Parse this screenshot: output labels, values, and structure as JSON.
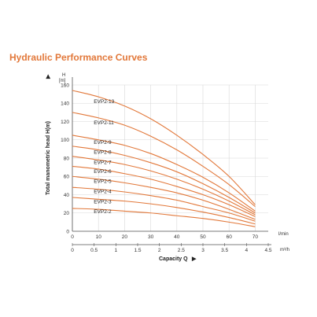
{
  "title": "Hydraulic Performance Curves",
  "colors": {
    "curve": "#e2783a",
    "grid": "#d8d8d8",
    "axis": "#555555",
    "title": "#e2783a"
  },
  "chart_data": {
    "type": "line",
    "title": "Hydraulic Performance Curves",
    "ylabel": "Total manometric head H(m)",
    "y_unit_top": "H",
    "y_unit": "[m]",
    "xlabel": "Capacity Q",
    "x_unit_1": "l/min",
    "x_unit_2": "m³/h",
    "xlim": [
      0,
      75
    ],
    "ylim": [
      0,
      160
    ],
    "x_ticks": [
      0,
      10,
      20,
      30,
      40,
      50,
      60,
      70
    ],
    "x2_ticks": [
      "0",
      "0.5",
      "1",
      "1.5",
      "2",
      "2.5",
      "3",
      "3.5",
      "4",
      "4.5"
    ],
    "y_ticks": [
      0,
      20,
      40,
      60,
      80,
      100,
      120,
      140,
      160
    ],
    "grid": true,
    "series": [
      {
        "name": "EVP2-13",
        "x": [
          0,
          10,
          20,
          30,
          40,
          50,
          60,
          70
        ],
        "values": [
          154,
          147,
          137,
          123,
          105,
          84,
          60,
          29
        ]
      },
      {
        "name": "EVP2-11",
        "x": [
          0,
          10,
          20,
          30,
          40,
          50,
          60,
          70
        ],
        "values": [
          130,
          124,
          116,
          104,
          89,
          71,
          51,
          27
        ]
      },
      {
        "name": "EVP2-9",
        "x": [
          0,
          10,
          20,
          30,
          40,
          50,
          60,
          70
        ],
        "values": [
          105,
          100,
          94,
          85,
          73,
          59,
          42,
          22
        ]
      },
      {
        "name": "EVP2-8",
        "x": [
          0,
          10,
          20,
          30,
          40,
          50,
          60,
          70
        ],
        "values": [
          93,
          89,
          83,
          75,
          65,
          52,
          37,
          20
        ]
      },
      {
        "name": "EVP2-7",
        "x": [
          0,
          10,
          20,
          30,
          40,
          50,
          60,
          70
        ],
        "values": [
          82,
          78,
          73,
          66,
          57,
          46,
          33,
          18
        ]
      },
      {
        "name": "EVP2-6",
        "x": [
          0,
          10,
          20,
          30,
          40,
          50,
          60,
          70
        ],
        "values": [
          71,
          68,
          63,
          57,
          49,
          40,
          29,
          16
        ]
      },
      {
        "name": "EVP2-5",
        "x": [
          0,
          10,
          20,
          30,
          40,
          50,
          60,
          70
        ],
        "values": [
          60,
          57,
          53,
          48,
          42,
          34,
          24,
          13
        ]
      },
      {
        "name": "EVP2-4",
        "x": [
          0,
          10,
          20,
          30,
          40,
          50,
          60,
          70
        ],
        "values": [
          48,
          46,
          43,
          39,
          34,
          27,
          20,
          11
        ]
      },
      {
        "name": "EVP2-3",
        "x": [
          0,
          10,
          20,
          30,
          40,
          50,
          60,
          70
        ],
        "values": [
          37,
          35,
          33,
          30,
          26,
          21,
          15,
          8
        ]
      },
      {
        "name": "EVP2-2",
        "x": [
          0,
          10,
          20,
          30,
          40,
          50,
          60,
          70
        ],
        "values": [
          25,
          24,
          22,
          20,
          17,
          14,
          10,
          5
        ]
      }
    ]
  }
}
